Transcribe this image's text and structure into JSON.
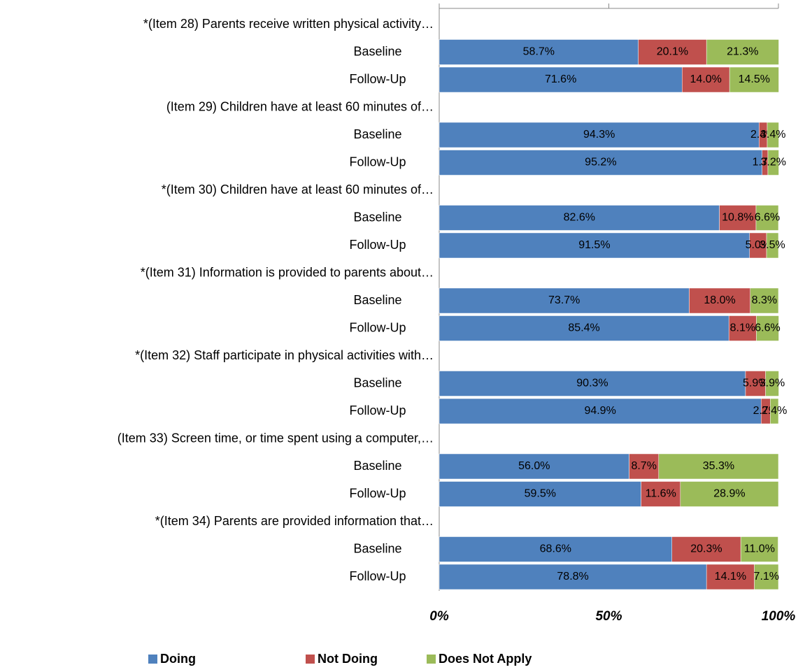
{
  "chart_data": {
    "type": "stacked-bar-horizontal",
    "categories": [
      "*(Item 28) Parents receive written physical activity…",
      "Baseline",
      "Follow-Up",
      "(Item 29) Children have at least 60 minutes of…",
      "Baseline",
      "Follow-Up",
      "*(Item 30) Children have at least 60 minutes of…",
      "Baseline",
      "Follow-Up",
      "*(Item 31) Information is provided to parents about…",
      "Baseline",
      "Follow-Up",
      "*(Item 32) Staff participate in physical activities with…",
      "Baseline",
      "Follow-Up",
      "(Item 33) Screen time, or time spent using a computer,…",
      "Baseline",
      "Follow-Up",
      "*(Item 34) Parents are provided information that…",
      "Baseline",
      "Follow-Up"
    ],
    "series": [
      {
        "name": "Doing",
        "color": "#4f81bd",
        "values": [
          null,
          58.7,
          71.6,
          null,
          94.3,
          95.2,
          null,
          82.6,
          91.5,
          null,
          73.7,
          85.4,
          null,
          90.3,
          94.9,
          null,
          56.0,
          59.5,
          null,
          68.6,
          78.8
        ],
        "value_labels": [
          null,
          "58.7%",
          "71.6%",
          null,
          "94.3%",
          "95.2%",
          null,
          "82.6%",
          "91.5%",
          null,
          "73.7%",
          "85.4%",
          null,
          "90.3%",
          "94.9%",
          null,
          "56.0%",
          "59.5%",
          null,
          "68.6%",
          "78.8%"
        ]
      },
      {
        "name": "Not Doing",
        "color": "#c0504d",
        "values": [
          null,
          20.1,
          14.0,
          null,
          2.4,
          1.7,
          null,
          10.8,
          5.0,
          null,
          18.0,
          8.1,
          null,
          5.9,
          2.7,
          null,
          8.7,
          11.6,
          null,
          20.3,
          14.1
        ],
        "value_labels": [
          null,
          "20.1%",
          "14.0%",
          null,
          "2.4%",
          "1.7%",
          null,
          "10.8%",
          "5.0%",
          null,
          "18.0%",
          "8.1%",
          null,
          "5.9%",
          "2.7%",
          null,
          "8.7%",
          "11.6%",
          null,
          "20.3%",
          "14.1%"
        ]
      },
      {
        "name": "Does Not Apply",
        "color": "#9bbb59",
        "values": [
          null,
          21.3,
          14.5,
          null,
          3.4,
          3.2,
          null,
          6.6,
          3.5,
          null,
          8.3,
          6.6,
          null,
          3.9,
          2.4,
          null,
          35.3,
          28.9,
          null,
          11.0,
          7.1
        ],
        "value_labels": [
          null,
          "21.3%",
          "14.5%",
          null,
          "3.4%",
          "3.2%",
          null,
          "6.6%",
          "3.5%",
          null,
          "8.3%",
          "6.6%",
          null,
          "3.9%",
          "2.4%",
          null,
          "35.3%",
          "28.9%",
          null,
          "11.0%",
          "7.1%"
        ]
      }
    ],
    "xlim": [
      0,
      100
    ],
    "xticks": [
      {
        "value": 0,
        "label": "0%"
      },
      {
        "value": 50,
        "label": "50%"
      },
      {
        "value": 100,
        "label": "100%"
      }
    ],
    "legend": "bottom"
  }
}
